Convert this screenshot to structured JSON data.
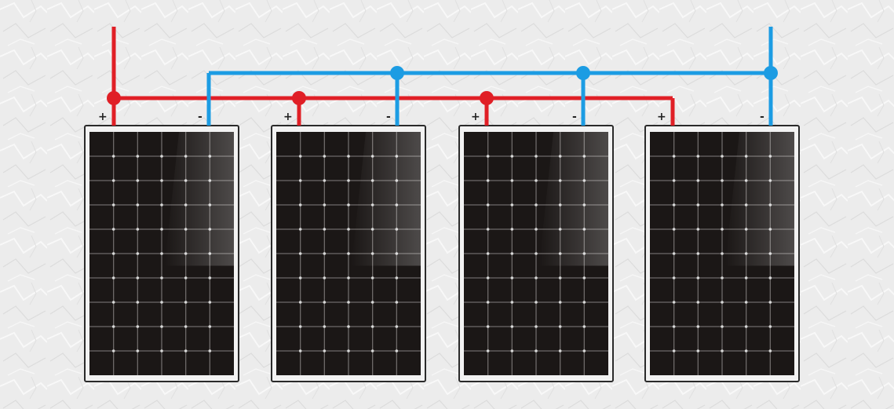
{
  "diagram": {
    "panel_count": 4,
    "connection_type": "parallel",
    "panel_grid": {
      "rows": 10,
      "cols": 6
    },
    "colors": {
      "positive_wire": "#e01f26",
      "negative_wire": "#1c9ce3",
      "panel_frame": "#2a2a2a",
      "panel_cells": "#1b1716",
      "background": "#ececec"
    },
    "panels": [
      {
        "plus_label": "+",
        "minus_label": "-"
      },
      {
        "plus_label": "+",
        "minus_label": "-"
      },
      {
        "plus_label": "+",
        "minus_label": "-"
      },
      {
        "plus_label": "+",
        "minus_label": "-"
      }
    ]
  }
}
